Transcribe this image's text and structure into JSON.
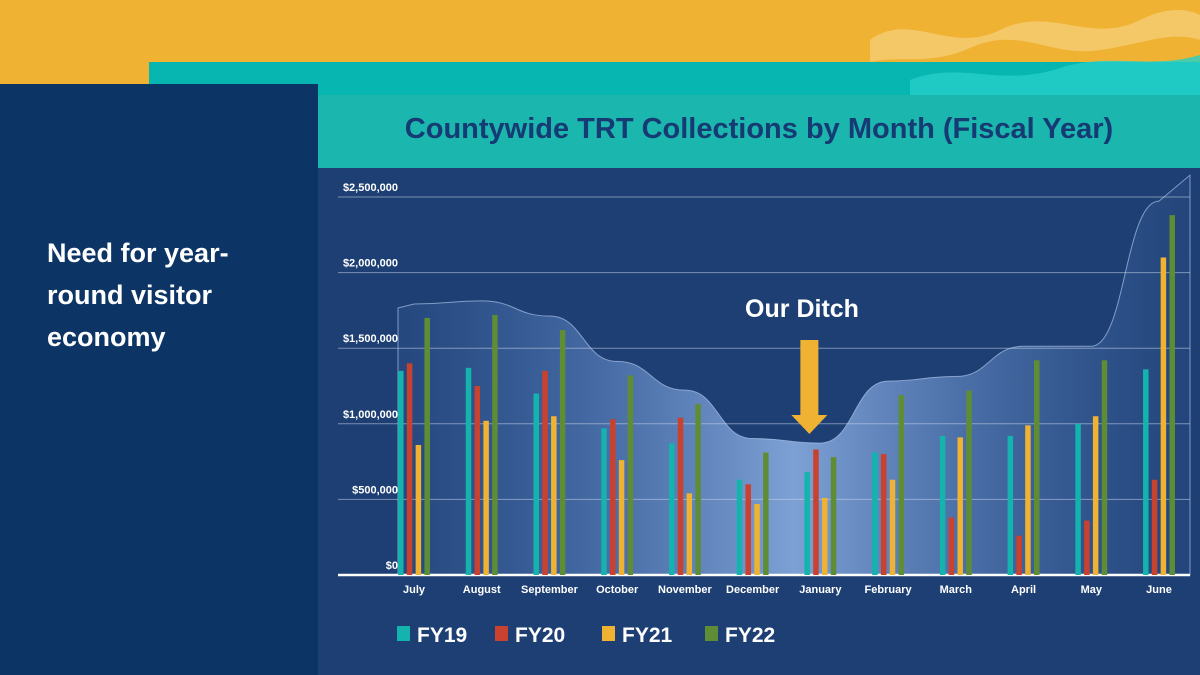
{
  "slide": {
    "side_text": "Need for year-round visitor economy"
  },
  "colors": {
    "top_band": "#f0b233",
    "teal_band": "#07b6b0",
    "navy": "#0c3566",
    "title_bar": "#1bb6ad",
    "title_text": "#163a73",
    "chart_bg": "#1e3f73",
    "annotation_arrow": "#f0b233"
  },
  "chart_data": {
    "type": "bar",
    "title": "Countywide TRT Collections by Month (Fiscal Year)",
    "xlabel": "",
    "ylabel": "",
    "ylim": [
      0,
      2500000
    ],
    "grid": true,
    "legend_position": "bottom-left",
    "y_ticks": [
      {
        "value": 0,
        "label": "$0"
      },
      {
        "value": 500000,
        "label": "$500,000"
      },
      {
        "value": 1000000,
        "label": "$1,000,000"
      },
      {
        "value": 1500000,
        "label": "$1,500,000"
      },
      {
        "value": 2000000,
        "label": "$2,000,000"
      },
      {
        "value": 2500000,
        "label": "$2,500,000"
      }
    ],
    "categories": [
      "July",
      "August",
      "September",
      "October",
      "November",
      "December",
      "January",
      "February",
      "March",
      "April",
      "May",
      "June"
    ],
    "series": [
      {
        "name": "FY19",
        "color": "#14b3ad",
        "values": [
          1350000,
          1370000,
          1200000,
          970000,
          870000,
          630000,
          680000,
          810000,
          920000,
          920000,
          1000000,
          1360000
        ]
      },
      {
        "name": "FY20",
        "color": "#c9412f",
        "values": [
          1400000,
          1250000,
          1350000,
          1030000,
          1040000,
          600000,
          830000,
          800000,
          380000,
          260000,
          360000,
          630000
        ]
      },
      {
        "name": "FY21",
        "color": "#f0b233",
        "values": [
          860000,
          1020000,
          1050000,
          760000,
          540000,
          470000,
          510000,
          630000,
          910000,
          990000,
          1050000,
          2100000
        ]
      },
      {
        "name": "FY22",
        "color": "#5f8d35",
        "values": [
          1700000,
          1720000,
          1620000,
          1320000,
          1130000,
          810000,
          780000,
          1190000,
          1220000,
          1420000,
          1420000,
          2380000
        ]
      }
    ],
    "annotations": [
      {
        "text": "Our Ditch",
        "category": "January"
      }
    ]
  }
}
